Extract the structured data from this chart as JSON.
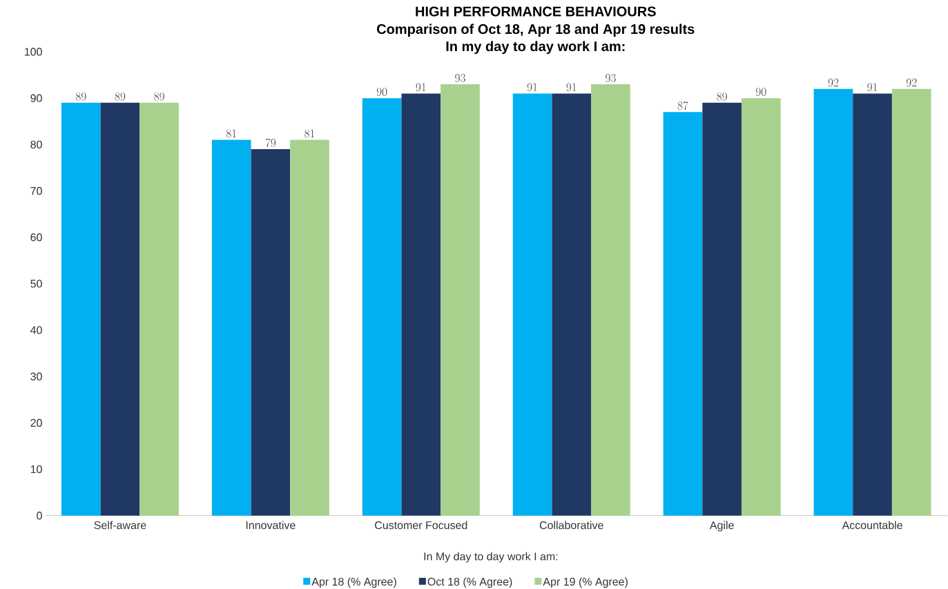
{
  "chart_data": {
    "type": "bar",
    "title": "HIGH PERFORMANCE BEHAVIOURS",
    "subtitle": "Comparison of Oct 18, Apr 18 and Apr 19 results",
    "annotations": [
      "In my day to day work I am:"
    ],
    "xlabel": "In My day to day work I am:",
    "categories": [
      "Self-aware",
      "Innovative",
      "Customer Focused",
      "Collaborative",
      "Agile",
      "Accountable"
    ],
    "series": [
      {
        "name": "Apr 18 (% Agree)",
        "color": "#00b0f0",
        "values": [
          89,
          81,
          90,
          91,
          87,
          92
        ]
      },
      {
        "name": "Oct 18 (% Agree)",
        "color": "#203864",
        "values": [
          89,
          79,
          91,
          91,
          89,
          91
        ]
      },
      {
        "name": "Apr 19 (% Agree)",
        "color": "#a9d18e",
        "values": [
          89,
          81,
          93,
          93,
          90,
          92
        ]
      }
    ],
    "ylim": [
      0,
      100
    ],
    "yticks": [
      0,
      10,
      20,
      30,
      40,
      50,
      60,
      70,
      80,
      90,
      100
    ],
    "data_labels": true,
    "legend": "bottom",
    "grid": false
  }
}
